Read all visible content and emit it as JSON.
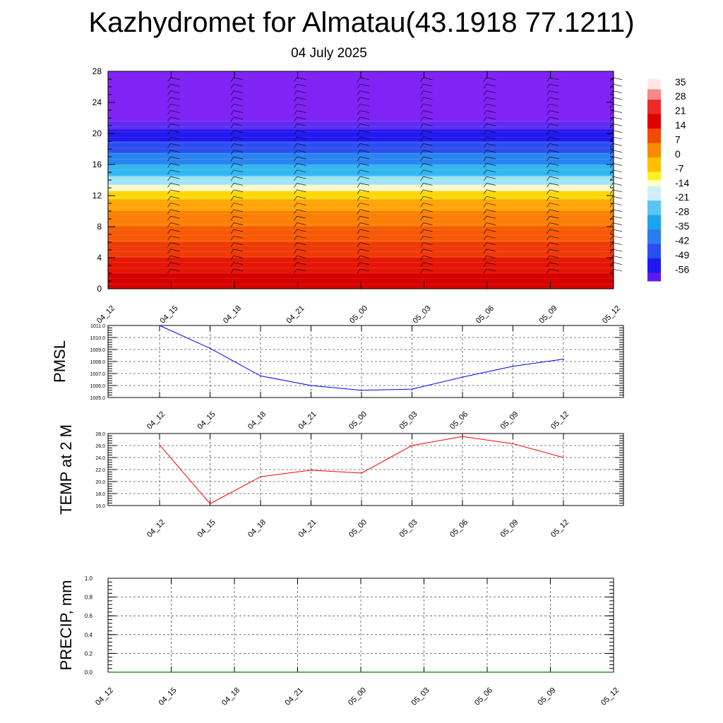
{
  "title": "Kazhydromet for Almatau(43.1918 77.1211)",
  "subtitle": "04 July 2025",
  "chart_data": [
    {
      "type": "heatmap",
      "name": "vertical temperature cross-section",
      "x_tick_labels": [
        "04_12",
        "04_15",
        "04_18",
        "04_21",
        "05_00",
        "05_03",
        "05_06",
        "05_09",
        "05_12"
      ],
      "y_tick_labels": [
        "0",
        "4",
        "8",
        "12",
        "16",
        "20",
        "24",
        "28"
      ],
      "ylim": [
        0,
        28
      ],
      "colorbar_labels": [
        "35",
        "28",
        "21",
        "14",
        "7",
        "0",
        "-7",
        "-14",
        "-21",
        "-28",
        "-35",
        "-42",
        "-49",
        "-56"
      ],
      "colorbar_range": [
        -60,
        38
      ],
      "bands": [
        {
          "from": 0,
          "to": 2,
          "color": "#d60000"
        },
        {
          "from": 2,
          "to": 4,
          "color": "#e41606"
        },
        {
          "from": 4,
          "to": 6,
          "color": "#ee3a08"
        },
        {
          "from": 6,
          "to": 8,
          "color": "#f65a06"
        },
        {
          "from": 8,
          "to": 10,
          "color": "#fb7f06"
        },
        {
          "from": 10,
          "to": 11.5,
          "color": "#fda508"
        },
        {
          "from": 11.5,
          "to": 12.6,
          "color": "#fed70a"
        },
        {
          "from": 12.6,
          "to": 13.4,
          "color": "#fbf8d0"
        },
        {
          "from": 13.4,
          "to": 14.5,
          "color": "#9fe4f4"
        },
        {
          "from": 14.5,
          "to": 16,
          "color": "#34b6f0"
        },
        {
          "from": 16,
          "to": 17.5,
          "color": "#2a84f0"
        },
        {
          "from": 17.5,
          "to": 19,
          "color": "#2d4ff0"
        },
        {
          "from": 19,
          "to": 20.5,
          "color": "#2418f0"
        },
        {
          "from": 20.5,
          "to": 21.5,
          "color": "#5a2ef2"
        },
        {
          "from": 21.5,
          "to": 28,
          "color": "#8024f5"
        }
      ],
      "barb_columns": [
        "04_15",
        "04_18",
        "04_21",
        "05_00",
        "05_03",
        "05_06",
        "05_09",
        "05_12"
      ]
    },
    {
      "type": "line",
      "ylabel": "PMSL",
      "x": [
        "04_12",
        "04_15",
        "04_18",
        "04_21",
        "05_00",
        "05_03",
        "05_06",
        "05_09",
        "05_12"
      ],
      "series": [
        {
          "values": [
            1011.0,
            1009.1,
            1006.8,
            1006.0,
            1005.6,
            1005.7,
            1006.7,
            1007.6,
            1008.2
          ],
          "color": "#0000ff"
        }
      ],
      "ylim": [
        1005.0,
        1011.0
      ],
      "y_tick_labels": [
        "1005.0",
        "1006.0",
        "1007.0",
        "1008.0",
        "1009.0",
        "1010.0",
        "1011.0"
      ],
      "grid": true
    },
    {
      "type": "line",
      "ylabel": "TEMP at 2 M",
      "x": [
        "04_12",
        "04_15",
        "04_18",
        "04_21",
        "05_00",
        "05_03",
        "05_06",
        "05_09",
        "05_12"
      ],
      "series": [
        {
          "values": [
            26.1,
            16.3,
            20.8,
            21.9,
            21.4,
            26.0,
            27.5,
            26.3,
            24.0
          ],
          "color": "#ff0000"
        }
      ],
      "ylim": [
        16.0,
        28.0
      ],
      "y_tick_labels": [
        "16.0",
        "18.0",
        "20.0",
        "22.0",
        "24.0",
        "26.0",
        "28.0"
      ],
      "grid": true
    },
    {
      "type": "bar",
      "ylabel": "PRECIP, mm",
      "x": [
        "04_12",
        "04_15",
        "04_18",
        "04_21",
        "05_00",
        "05_03",
        "05_06",
        "05_09",
        "05_12"
      ],
      "values": [
        0,
        0,
        0,
        0,
        0,
        0,
        0,
        0,
        0
      ],
      "color": "#008000",
      "ylim": [
        0.0,
        1.0
      ],
      "y_tick_labels": [
        "0.0",
        "0.2",
        "0.4",
        "0.6",
        "0.8",
        "1.0"
      ],
      "grid": true
    }
  ]
}
